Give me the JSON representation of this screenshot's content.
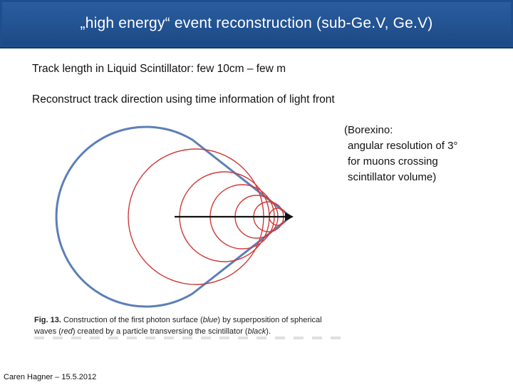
{
  "slide": {
    "title": "„high energy“ event reconstruction (sub-Ge.V, Ge.V)",
    "line1": "Track length in Liquid Scintillator: few 10cm – few m",
    "line2": "Reconstruct track direction using time information of light front",
    "borexino": [
      "(Borexino:",
      " angular resolution of 3°",
      " for muons crossing",
      " scintillator volume)"
    ],
    "caption": {
      "label": "Fig. 13.",
      "text_part1": " Construction of the first photon surface (",
      "blue_word": "blue",
      "text_part2": ") by superposition of spherical waves (",
      "red_word": "red",
      "text_part3": ") created by a particle transversing the scintillator (",
      "black_word": "black",
      "text_part4": ")."
    },
    "footer": "Caren Hagner – 15.5.2012"
  },
  "colors": {
    "title_bg": "#1f4e8c",
    "wavefront_blue": "#5b7fb8",
    "wave_red": "#d03a3a",
    "track_black": "#111111"
  },
  "icons": {
    "track_arrow": "arrow-right-icon"
  }
}
